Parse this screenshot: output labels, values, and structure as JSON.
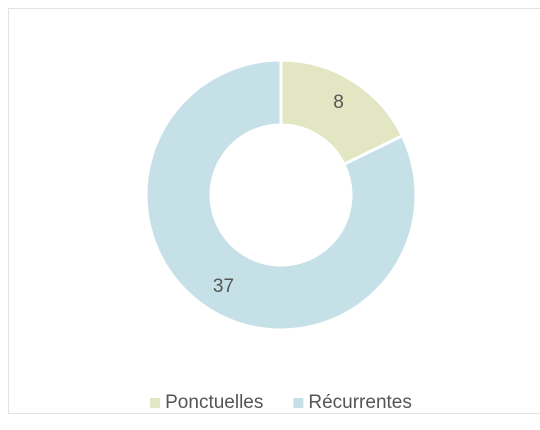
{
  "chart_data": {
    "type": "donut",
    "categories": [
      "Ponctuelles",
      "Récurrentes"
    ],
    "values": [
      8,
      37
    ],
    "colors": [
      "#e2e6c2",
      "#c5e1e7"
    ],
    "legend": "bottom"
  }
}
